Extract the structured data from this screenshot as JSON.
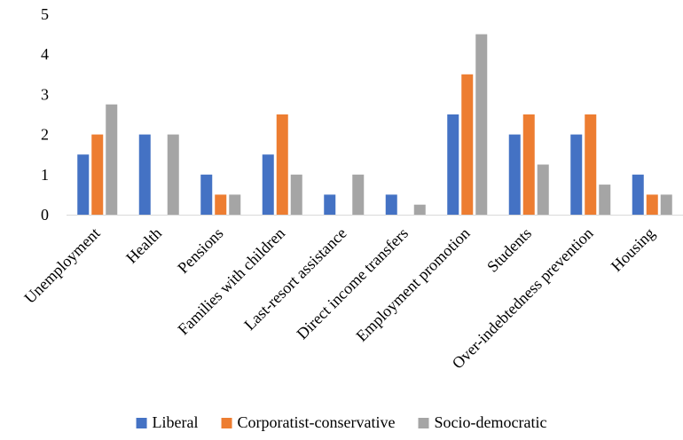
{
  "chart_data": {
    "type": "bar",
    "categories": [
      "Unemployment",
      "Health",
      "Pensions",
      "Families with children",
      "Last-resort assistance",
      "Direct income transfers",
      "Employment promotion",
      "Students",
      "Over-indebtedness prevention",
      "Housing"
    ],
    "series": [
      {
        "name": "Liberal",
        "color": "#4472C4",
        "values": [
          1.5,
          2,
          1,
          1.5,
          0.5,
          0.5,
          2.5,
          2,
          2,
          1
        ]
      },
      {
        "name": "Corporatist-conservative",
        "color": "#ED7D31",
        "values": [
          2,
          0,
          0.5,
          2.5,
          0,
          0,
          3.5,
          2.5,
          2.5,
          0.5
        ]
      },
      {
        "name": "Socio-democratic",
        "color": "#A5A5A5",
        "values": [
          2.75,
          2,
          0.5,
          1,
          1,
          0.25,
          4.5,
          1.25,
          0.75,
          0.5
        ]
      }
    ],
    "ylim": [
      0,
      5
    ],
    "yticks": [
      "0",
      "1",
      "2",
      "3",
      "4",
      "5"
    ],
    "grid": false,
    "legend_position": "bottom",
    "title": "",
    "xlabel": "",
    "ylabel": ""
  }
}
